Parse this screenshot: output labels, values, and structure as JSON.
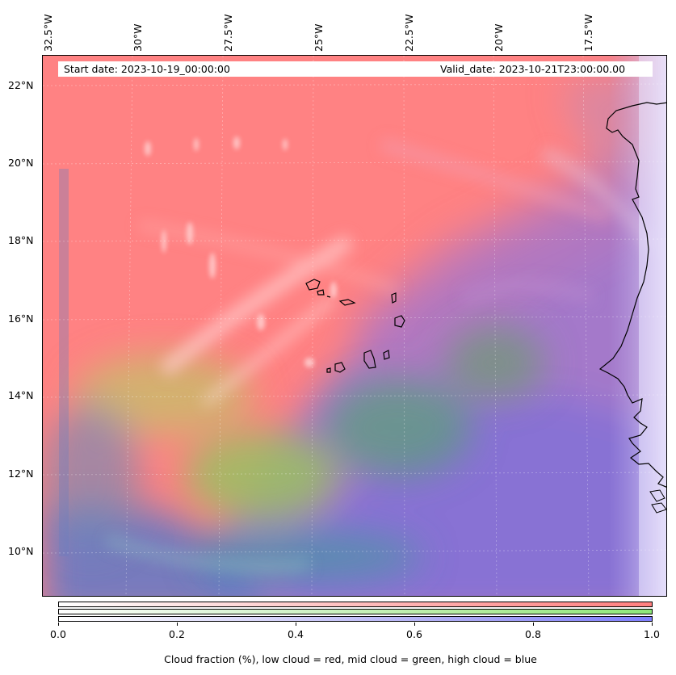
{
  "map": {
    "start_date": "Start date: 2023-10-19_00:00:00",
    "valid_date": "Valid_date: 2023-10-21T23:00:00.00",
    "lon_ticks": [
      "32.5°W",
      "30°W",
      "27.5°W",
      "25°W",
      "22.5°W",
      "20°W",
      "17.5°W"
    ],
    "lat_ticks": [
      "22°N",
      "20°N",
      "18°N",
      "16°N",
      "14°N",
      "12°N",
      "10°N"
    ],
    "layers": {
      "low_cloud_color": "#ff7f7f",
      "mid_cloud_color": "#8ee87a",
      "high_cloud_color": "#7f7fff"
    }
  },
  "colorbar": {
    "ticks": [
      "0.0",
      "0.2",
      "0.4",
      "0.6",
      "0.8",
      "1.0"
    ],
    "label": "Cloud fraction (%), low cloud = red, mid cloud = green, high cloud = blue",
    "range": [
      0.0,
      1.0
    ]
  }
}
